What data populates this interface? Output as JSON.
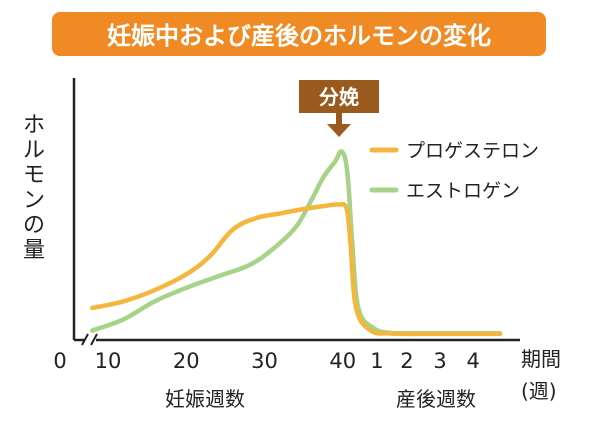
{
  "chart_data": {
    "type": "line",
    "title": "妊娠中および産後のホルモンの変化",
    "ylabel": "ホルモンの量",
    "x_axis_unit": "期間",
    "x_axis_unit_sub": "(週)",
    "x_axis_groups": [
      {
        "label": "妊娠週数"
      },
      {
        "label": "産後週数"
      }
    ],
    "x_ticks": [
      {
        "label": "0"
      },
      {
        "label": "10"
      },
      {
        "label": "20"
      },
      {
        "label": "30"
      },
      {
        "label": "40"
      },
      {
        "label": "1"
      },
      {
        "label": "2"
      },
      {
        "label": "3"
      },
      {
        "label": "4"
      }
    ],
    "annotation": {
      "label": "分娩",
      "color": "#9a5a1d"
    },
    "title_bg_color": "#f08a24",
    "axis_color": "#222222",
    "series": [
      {
        "name": "プロゲステロン",
        "color": "#f4b63c",
        "points": [
          [
            8,
            12
          ],
          [
            12,
            15
          ],
          [
            16,
            20
          ],
          [
            20,
            27
          ],
          [
            23,
            35
          ],
          [
            26,
            47
          ],
          [
            29,
            52
          ],
          [
            32,
            54
          ],
          [
            35,
            56
          ],
          [
            38,
            57.5
          ],
          [
            39.5,
            58
          ],
          [
            40.5,
            56
          ],
          [
            41,
            40
          ],
          [
            41.7,
            12
          ],
          [
            42.8,
            2
          ],
          [
            44,
            0.7
          ],
          [
            45,
            0.5
          ],
          [
            46,
            0.5
          ],
          [
            47,
            0.5
          ],
          [
            48,
            0.5
          ],
          [
            49,
            0.5
          ],
          [
            50,
            0.5
          ],
          [
            51,
            0.5
          ]
        ]
      },
      {
        "name": "エストロゲン",
        "color": "#a6d387",
        "points": [
          [
            8,
            2
          ],
          [
            12,
            7
          ],
          [
            16,
            15
          ],
          [
            20,
            21
          ],
          [
            24,
            26
          ],
          [
            28,
            31
          ],
          [
            31,
            38
          ],
          [
            34,
            48
          ],
          [
            36,
            60
          ],
          [
            37.5,
            70
          ],
          [
            39,
            77
          ],
          [
            39.9,
            81.5
          ],
          [
            40.6,
            72
          ],
          [
            41.2,
            42
          ],
          [
            42,
            12
          ],
          [
            43,
            3
          ],
          [
            44,
            1
          ],
          [
            45,
            0.8
          ],
          [
            46,
            0.8
          ],
          [
            47,
            0.8
          ],
          [
            48,
            0.8
          ],
          [
            49,
            0.8
          ],
          [
            50,
            0.8
          ],
          [
            51,
            0.8
          ]
        ]
      }
    ]
  }
}
